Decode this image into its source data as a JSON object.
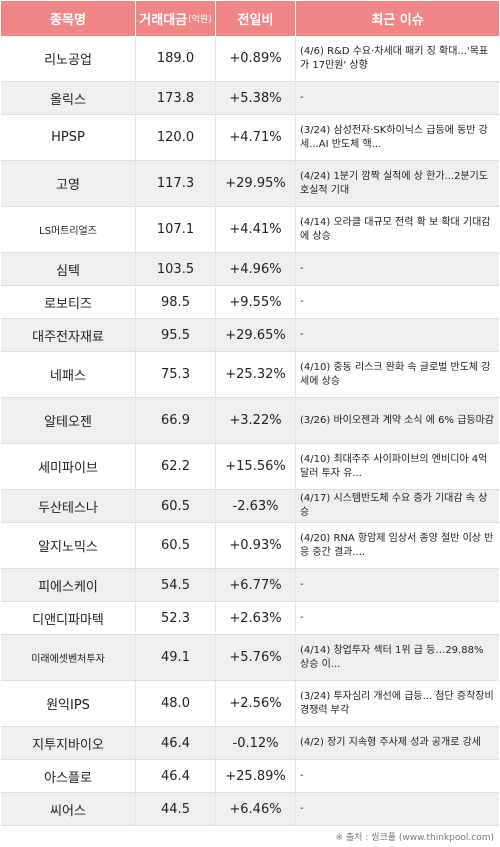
{
  "header": {
    "name": "종목명",
    "volume": "거래대금",
    "volume_unit": "(억원)",
    "change": "전일비",
    "issue": "최근 이슈"
  },
  "rows": [
    {
      "name": "리노공업",
      "volume": "189.0",
      "change": "+0.89%",
      "dir": "up",
      "issue": "(4/6) R&D 수요·차세대 패키 징 확대...'목표가 17만원' 상향",
      "h": 46
    },
    {
      "name": "올릭스",
      "volume": "173.8",
      "change": "+5.38%",
      "dir": "up",
      "issue": "-",
      "h": 33
    },
    {
      "name": "HPSP",
      "volume": "120.0",
      "change": "+4.71%",
      "dir": "up",
      "issue": "(3/24) 삼성전자·SK하이닉스 급등에 동반 강세...AI 반도체 핵...",
      "h": 46
    },
    {
      "name": "고영",
      "volume": "117.3",
      "change": "+29.95%",
      "dir": "up",
      "issue": "(4/24) 1분기 깜짝 실적에 상 한가...2분기도 호실적 기대",
      "h": 46
    },
    {
      "name": "LS머트리얼즈",
      "volume": "107.1",
      "change": "+4.41%",
      "dir": "up",
      "issue": "(4/14) 오라클 대규모 전력 확 보 확대 기대감에 상승",
      "h": 46,
      "small": true
    },
    {
      "name": "심텍",
      "volume": "103.5",
      "change": "+4.96%",
      "dir": "up",
      "issue": "-",
      "h": 33
    },
    {
      "name": "로보티즈",
      "volume": "98.5",
      "change": "+9.55%",
      "dir": "up",
      "issue": "-",
      "h": 33
    },
    {
      "name": "대주전자재료",
      "volume": "95.5",
      "change": "+29.65%",
      "dir": "up",
      "issue": "-",
      "h": 33
    },
    {
      "name": "네패스",
      "volume": "75.3",
      "change": "+25.32%",
      "dir": "up",
      "issue": "(4/10) 중동 리스크 완화 속 글로벌 반도체 강세에 상승",
      "h": 46
    },
    {
      "name": "알테오젠",
      "volume": "66.9",
      "change": "+3.22%",
      "dir": "up",
      "issue": "(3/26) 바이오젠과 계약 소식 에 6% 급등마감",
      "h": 46
    },
    {
      "name": "세미파이브",
      "volume": "62.2",
      "change": "+15.56%",
      "dir": "up",
      "issue": "(4/10) 최대주주 사이파이브의 엔비디아 4억달러 투자 유...",
      "h": 46
    },
    {
      "name": "두산테스나",
      "volume": "60.5",
      "change": "-2.63%",
      "dir": "down",
      "issue": "(4/17) 시스템반도체 수요 증가 기대감 속 상승",
      "h": 33
    },
    {
      "name": "알지노믹스",
      "volume": "60.5",
      "change": "+0.93%",
      "dir": "up",
      "issue": "(4/20) RNA 항암제 임상서 종양 절반 이상 반응 중간 결과....",
      "h": 46
    },
    {
      "name": "피에스케이",
      "volume": "54.5",
      "change": "+6.77%",
      "dir": "up",
      "issue": "-",
      "h": 33
    },
    {
      "name": "디앤디파마텍",
      "volume": "52.3",
      "change": "+2.63%",
      "dir": "up",
      "issue": "-",
      "h": 33
    },
    {
      "name": "미래에셋벤처투자",
      "volume": "49.1",
      "change": "+5.76%",
      "dir": "up",
      "issue": "(4/14) 창업투자 섹터 1위 급 등…29.88% 상승 이...",
      "h": 46,
      "small": true
    },
    {
      "name": "원익IPS",
      "volume": "48.0",
      "change": "+2.56%",
      "dir": "up",
      "issue": "(3/24) 투자심리 개선에 급등... 첨단 증착장비 경쟁력 부각",
      "h": 46
    },
    {
      "name": "지투지바이오",
      "volume": "46.4",
      "change": "-0.12%",
      "dir": "down",
      "issue": "(4/2) 장기 지속형 주사제 성과 공개로 강세",
      "h": 33
    },
    {
      "name": "아스플로",
      "volume": "46.4",
      "change": "+25.89%",
      "dir": "up",
      "issue": "-",
      "h": 33
    },
    {
      "name": "씨어스",
      "volume": "44.5",
      "change": "+6.46%",
      "dir": "up",
      "issue": "-",
      "h": 33
    }
  ],
  "footer": "※ 출처 : 씽크풀 (www.thinkpool.com)"
}
